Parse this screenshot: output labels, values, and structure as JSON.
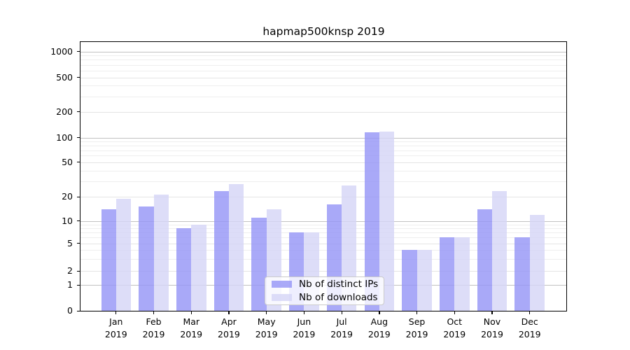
{
  "title": "hapmap500knsp 2019",
  "legend": {
    "items": [
      {
        "label": "Nb of distinct IPs",
        "color": "rgba(150,150,247,0.82)"
      },
      {
        "label": "Nb of downloads",
        "color": "rgba(213,213,247,0.82)"
      }
    ]
  },
  "y_axis": {
    "tick_labels": [
      "0",
      "1",
      "2",
      "5",
      "10",
      "20",
      "50",
      "100",
      "200",
      "500",
      "1000"
    ]
  },
  "x_axis": {
    "months": [
      "Jan",
      "Feb",
      "Mar",
      "Apr",
      "May",
      "Jun",
      "Jul",
      "Aug",
      "Sep",
      "Oct",
      "Nov",
      "Dec"
    ],
    "year": "2019"
  },
  "chart_data": {
    "type": "bar",
    "title": "hapmap500knsp 2019",
    "categories": [
      "Jan 2019",
      "Feb 2019",
      "Mar 2019",
      "Apr 2019",
      "May 2019",
      "Jun 2019",
      "Jul 2019",
      "Aug 2019",
      "Sep 2019",
      "Oct 2019",
      "Nov 2019",
      "Dec 2019"
    ],
    "series": [
      {
        "name": "Nb of distinct IPs",
        "values": [
          14,
          15,
          8,
          23,
          11,
          7,
          16,
          115,
          4,
          6,
          14,
          6
        ]
      },
      {
        "name": "Nb of downloads",
        "values": [
          19,
          21,
          9,
          28,
          14,
          7,
          27,
          118,
          4,
          6,
          23,
          12
        ]
      }
    ],
    "y_ticks": [
      0,
      1,
      2,
      5,
      10,
      20,
      50,
      100,
      200,
      500,
      1000
    ],
    "y_scale": "symlog",
    "ylim": [
      0,
      1300
    ],
    "grid": "horizontal major + log minor lines",
    "legend_position": "lower center inside plot",
    "bar_colors": {
      "distinct_ips": "#a8a8f8",
      "downloads": "#dcdcf8"
    }
  }
}
